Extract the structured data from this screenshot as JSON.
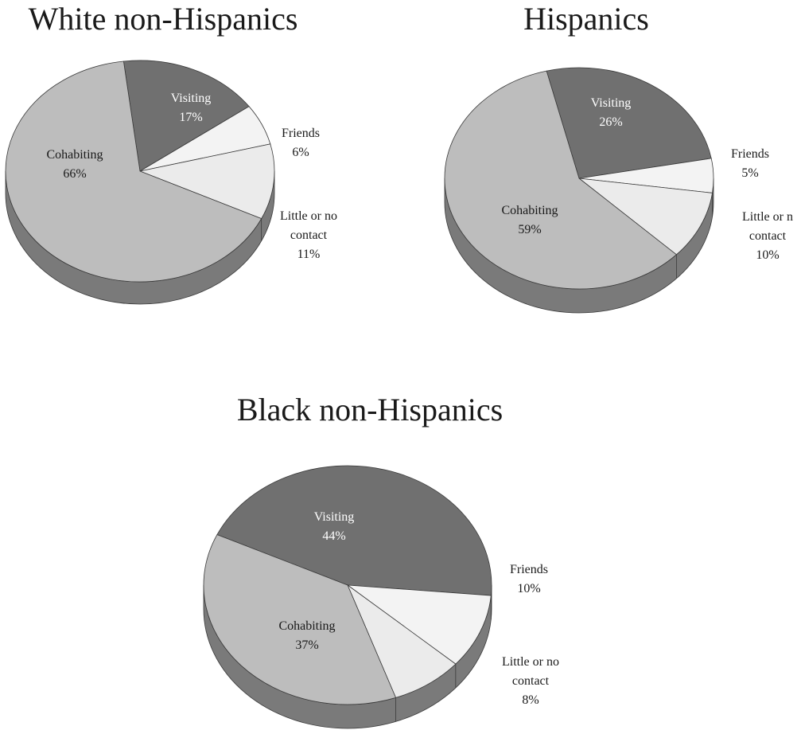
{
  "chart_data": [
    {
      "type": "pie",
      "title": "White non-Hispanics",
      "slices": [
        {
          "name": "Visiting",
          "value": 17,
          "label_lines": [
            "Visiting",
            "17%"
          ],
          "color": "#707070",
          "text_color": "#ffffff"
        },
        {
          "name": "Friends",
          "value": 6,
          "label_lines": [
            "Friends",
            "6%"
          ],
          "color": "#f3f3f3",
          "text_color": "#1a1a1a"
        },
        {
          "name": "Little or no contact",
          "value": 11,
          "label_lines": [
            "Little or no",
            "contact",
            "11%"
          ],
          "color": "#ebebeb",
          "text_color": "#1a1a1a"
        },
        {
          "name": "Cohabiting",
          "value": 66,
          "label_lines": [
            "Cohabiting",
            "66%"
          ],
          "color": "#bdbdbd",
          "text_color": "#1a1a1a"
        }
      ]
    },
    {
      "type": "pie",
      "title": "Hispanics",
      "slices": [
        {
          "name": "Visiting",
          "value": 26,
          "label_lines": [
            "Visiting",
            "26%"
          ],
          "color": "#707070",
          "text_color": "#ffffff"
        },
        {
          "name": "Friends",
          "value": 5,
          "label_lines": [
            "Friends",
            "5%"
          ],
          "color": "#f3f3f3",
          "text_color": "#1a1a1a"
        },
        {
          "name": "Little or no contact",
          "value": 10,
          "label_lines": [
            "Little or n",
            "contact",
            "10%"
          ],
          "color": "#ebebeb",
          "text_color": "#1a1a1a"
        },
        {
          "name": "Cohabiting",
          "value": 59,
          "label_lines": [
            "Cohabiting",
            "59%"
          ],
          "color": "#bdbdbd",
          "text_color": "#1a1a1a"
        }
      ]
    },
    {
      "type": "pie",
      "title": "Black non-Hispanics",
      "slices": [
        {
          "name": "Visiting",
          "value": 44,
          "label_lines": [
            "Visiting",
            "44%"
          ],
          "color": "#707070",
          "text_color": "#ffffff"
        },
        {
          "name": "Friends",
          "value": 10,
          "label_lines": [
            "Friends",
            "10%"
          ],
          "color": "#f3f3f3",
          "text_color": "#1a1a1a"
        },
        {
          "name": "Little or no contact",
          "value": 8,
          "label_lines": [
            "Little or no",
            "contact",
            "8%"
          ],
          "color": "#ebebeb",
          "text_color": "#1a1a1a"
        },
        {
          "name": "Cohabiting",
          "value": 37,
          "label_lines": [
            "Cohabiting",
            "37%"
          ],
          "color": "#bdbdbd",
          "text_color": "#1a1a1a"
        }
      ]
    }
  ]
}
